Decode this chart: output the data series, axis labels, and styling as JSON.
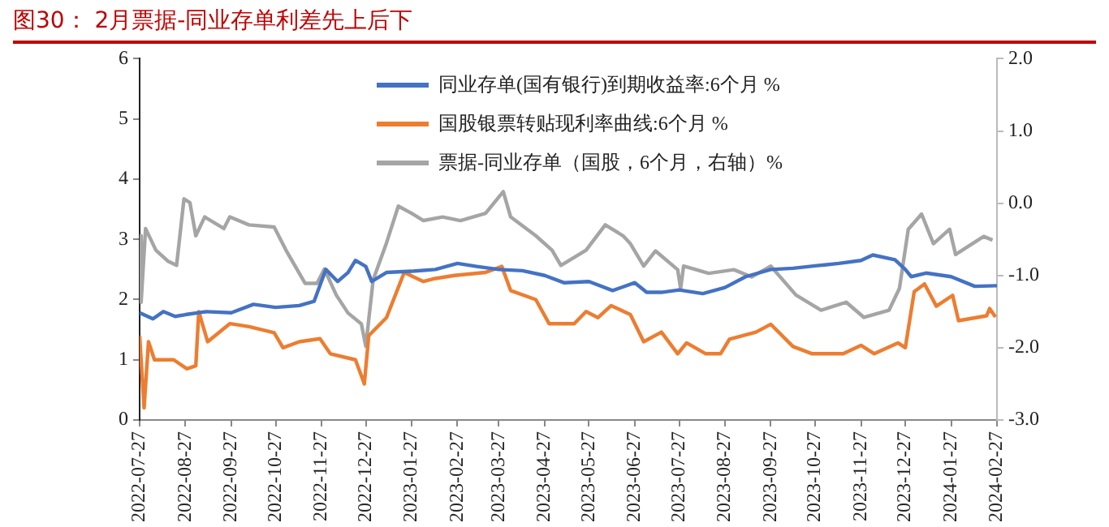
{
  "chart_data": {
    "type": "line",
    "title": "图30：  2月票据-同业存单利差先上后下",
    "xlim": [
      "2022-07-27",
      "2024-02-27"
    ],
    "xticks": [
      "2022-07-27",
      "2022-08-27",
      "2022-09-27",
      "2022-10-27",
      "2022-11-27",
      "2022-12-27",
      "2023-01-27",
      "2023-02-27",
      "2023-03-27",
      "2023-04-27",
      "2023-05-27",
      "2023-06-27",
      "2023-07-27",
      "2023-08-27",
      "2023-09-27",
      "2023-10-27",
      "2023-11-27",
      "2023-12-27",
      "2024-01-27",
      "2024-02-27"
    ],
    "ylim": [
      0,
      6
    ],
    "yticks": [
      0,
      1,
      2,
      3,
      4,
      5,
      6
    ],
    "y2lim": [
      -3,
      2
    ],
    "y2ticks": [
      {
        "value": -3,
        "label": "-3.0"
      },
      {
        "value": -2,
        "label": "-2.0"
      },
      {
        "value": -1,
        "label": "-1.0"
      },
      {
        "value": 0,
        "label": "0.0"
      },
      {
        "value": 1,
        "label": "1.0"
      },
      {
        "value": 2,
        "label": "2.0"
      }
    ],
    "grid": false,
    "legend": "top",
    "marker": "none",
    "series": [
      {
        "name": "同业存单(国有银行)到期收益率:6个月 %",
        "color": "#4472c4",
        "x": [
          "2022-07-27",
          "2022-08-05",
          "2022-08-12",
          "2022-08-20",
          "2022-08-27",
          "2022-09-10",
          "2022-09-27",
          "2022-10-12",
          "2022-10-27",
          "2022-11-12",
          "2022-11-22",
          "2022-11-30",
          "2022-12-08",
          "2022-12-15",
          "2022-12-20",
          "2022-12-27",
          "2022-12-31",
          "2023-01-10",
          "2023-01-27",
          "2023-02-12",
          "2023-02-27",
          "2023-03-12",
          "2023-03-27",
          "2023-04-12",
          "2023-04-27",
          "2023-05-10",
          "2023-05-27",
          "2023-06-12",
          "2023-06-27",
          "2023-07-05",
          "2023-07-15",
          "2023-07-27",
          "2023-08-12",
          "2023-08-27",
          "2023-09-10",
          "2023-09-27",
          "2023-10-12",
          "2023-10-27",
          "2023-11-12",
          "2023-11-27",
          "2023-12-05",
          "2023-12-20",
          "2023-12-27",
          "2023-12-31",
          "2024-01-10",
          "2024-01-27",
          "2024-02-12",
          "2024-02-27"
        ],
        "values": [
          1.78,
          1.68,
          1.8,
          1.72,
          1.75,
          1.8,
          1.78,
          1.92,
          1.87,
          1.9,
          1.97,
          2.5,
          2.3,
          2.45,
          2.65,
          2.55,
          2.3,
          2.45,
          2.47,
          2.5,
          2.6,
          2.55,
          2.5,
          2.48,
          2.4,
          2.28,
          2.3,
          2.15,
          2.28,
          2.12,
          2.12,
          2.16,
          2.1,
          2.2,
          2.38,
          2.5,
          2.52,
          2.56,
          2.6,
          2.65,
          2.74,
          2.66,
          2.5,
          2.38,
          2.44,
          2.38,
          2.22,
          2.23
        ]
      },
      {
        "name": "国股银票转贴现利率曲线:6个月 %",
        "color": "#ed7d31",
        "x": [
          "2022-07-27",
          "2022-07-30",
          "2022-08-02",
          "2022-08-06",
          "2022-08-19",
          "2022-08-28",
          "2022-09-03",
          "2022-09-05",
          "2022-09-11",
          "2022-09-26",
          "2022-10-09",
          "2022-10-26",
          "2022-11-01",
          "2022-11-12",
          "2022-11-26",
          "2022-12-03",
          "2022-12-20",
          "2022-12-26",
          "2022-12-29",
          "2023-01-10",
          "2023-01-18",
          "2023-01-22",
          "2023-02-04",
          "2023-02-12",
          "2023-02-25",
          "2023-03-18",
          "2023-03-29",
          "2023-04-04",
          "2023-04-21",
          "2023-04-30",
          "2023-05-17",
          "2023-05-25",
          "2023-06-02",
          "2023-06-11",
          "2023-06-24",
          "2023-07-03",
          "2023-07-15",
          "2023-07-26",
          "2023-08-01",
          "2023-08-14",
          "2023-08-24",
          "2023-08-30",
          "2023-09-17",
          "2023-09-27",
          "2023-10-12",
          "2023-10-25",
          "2023-11-15",
          "2023-11-27",
          "2023-12-06",
          "2023-12-22",
          "2023-12-27",
          "2024-01-02",
          "2024-01-09",
          "2024-01-17",
          "2024-01-28",
          "2024-02-01",
          "2024-02-20",
          "2024-02-22",
          "2024-02-26"
        ],
        "values": [
          1.4,
          0.2,
          1.3,
          1.0,
          1.0,
          0.85,
          0.9,
          1.8,
          1.3,
          1.6,
          1.55,
          1.45,
          1.2,
          1.3,
          1.35,
          1.1,
          1.0,
          0.6,
          1.4,
          1.7,
          2.2,
          2.45,
          2.3,
          2.35,
          2.4,
          2.45,
          2.55,
          2.15,
          2.0,
          1.6,
          1.6,
          1.8,
          1.7,
          1.9,
          1.75,
          1.3,
          1.46,
          1.1,
          1.28,
          1.1,
          1.1,
          1.34,
          1.46,
          1.59,
          1.22,
          1.1,
          1.1,
          1.24,
          1.1,
          1.28,
          1.2,
          2.13,
          2.26,
          1.89,
          2.07,
          1.65,
          1.73,
          1.85,
          1.71
        ]
      },
      {
        "name": "票据-同业存单（国股，6个月，右轴）%",
        "color": "#a5a5a5",
        "axis": "y2",
        "x": [
          "2022-07-27",
          "2022-07-28",
          "2022-07-31",
          "2022-08-07",
          "2022-08-15",
          "2022-08-21",
          "2022-08-26",
          "2022-08-30",
          "2022-09-03",
          "2022-09-09",
          "2022-09-22",
          "2022-09-26",
          "2022-10-09",
          "2022-10-26",
          "2022-11-03",
          "2022-11-16",
          "2022-11-24",
          "2022-11-29",
          "2022-12-07",
          "2022-12-15",
          "2022-12-24",
          "2022-12-27",
          "2023-01-01",
          "2023-01-10",
          "2023-01-18",
          "2023-01-27",
          "2023-02-04",
          "2023-02-17",
          "2023-03-01",
          "2023-03-18",
          "2023-03-30",
          "2023-04-04",
          "2023-04-21",
          "2023-05-02",
          "2023-05-08",
          "2023-05-25",
          "2023-06-07",
          "2023-06-19",
          "2023-06-24",
          "2023-07-03",
          "2023-07-11",
          "2023-07-26",
          "2023-07-28",
          "2023-07-30",
          "2023-08-16",
          "2023-09-02",
          "2023-09-14",
          "2023-09-27",
          "2023-10-14",
          "2023-10-31",
          "2023-11-17",
          "2023-11-29",
          "2023-12-16",
          "2023-12-23",
          "2023-12-29",
          "2024-01-07",
          "2024-01-15",
          "2024-01-26",
          "2024-01-30",
          "2024-02-18",
          "2024-02-24"
        ],
        "values": [
          -0.45,
          -1.37,
          -0.35,
          -0.65,
          -0.8,
          -0.86,
          0.06,
          0.01,
          -0.45,
          -0.19,
          -0.35,
          -0.19,
          -0.3,
          -0.33,
          -0.65,
          -1.11,
          -1.11,
          -0.91,
          -1.27,
          -1.52,
          -1.67,
          -1.98,
          -1.06,
          -0.55,
          -0.04,
          -0.14,
          -0.24,
          -0.19,
          -0.24,
          -0.14,
          0.16,
          -0.19,
          -0.45,
          -0.65,
          -0.86,
          -0.65,
          -0.3,
          -0.45,
          -0.56,
          -0.87,
          -0.66,
          -0.92,
          -1.18,
          -0.87,
          -0.97,
          -0.92,
          -1.02,
          -0.87,
          -1.27,
          -1.48,
          -1.37,
          -1.58,
          -1.48,
          -1.18,
          -0.36,
          -0.15,
          -0.56,
          -0.36,
          -0.71,
          -0.46,
          -0.51
        ]
      }
    ]
  }
}
